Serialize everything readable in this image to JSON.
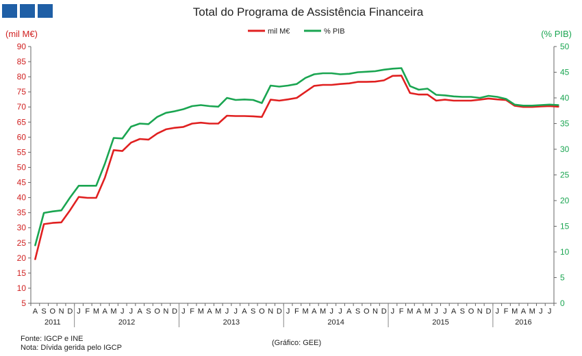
{
  "logo": {
    "squares": [
      "#1f5fa6",
      "#1f5fa6",
      "#1f5fa6"
    ]
  },
  "chart_data": {
    "type": "line",
    "title": "Total do Programa de Assistência Financeira",
    "ylabel_left": "(mil M€)",
    "ylabel_right": "(% PIB)",
    "ylim_left": [
      5,
      90
    ],
    "ylim_right": [
      0,
      50
    ],
    "yticks_left": [
      5,
      10,
      15,
      20,
      25,
      30,
      35,
      40,
      45,
      50,
      55,
      60,
      65,
      70,
      75,
      80,
      85,
      90
    ],
    "yticks_right": [
      0,
      5,
      10,
      15,
      20,
      25,
      30,
      35,
      40,
      45,
      50
    ],
    "month_labels": [
      "A",
      "S",
      "O",
      "N",
      "D",
      "J",
      "F",
      "M",
      "A",
      "M",
      "J",
      "J",
      "A",
      "S",
      "O",
      "N",
      "D",
      "J",
      "F",
      "M",
      "A",
      "M",
      "J",
      "J",
      "A",
      "S",
      "O",
      "N",
      "D",
      "J",
      "F",
      "M",
      "A",
      "M",
      "J",
      "J",
      "A",
      "S",
      "O",
      "N",
      "D",
      "J",
      "F",
      "M",
      "A",
      "M",
      "J",
      "J",
      "A",
      "S",
      "O",
      "N",
      "D",
      "J",
      "F",
      "M",
      "A",
      "M",
      "J",
      "J"
    ],
    "years": [
      {
        "label": "2011",
        "start": 0,
        "end": 5
      },
      {
        "label": "2012",
        "start": 5,
        "end": 17
      },
      {
        "label": "2013",
        "start": 17,
        "end": 29
      },
      {
        "label": "2014",
        "start": 29,
        "end": 41
      },
      {
        "label": "2015",
        "start": 41,
        "end": 53
      },
      {
        "label": "2016",
        "start": 53,
        "end": 60
      }
    ],
    "legend": [
      "mil M€",
      "% PIB"
    ],
    "series": [
      {
        "name": "mil M€",
        "axis": "left",
        "color": "#e02020",
        "values": [
          19.6,
          31.2,
          31.6,
          31.8,
          35.8,
          40.2,
          39.9,
          39.9,
          46.6,
          55.7,
          55.4,
          58.2,
          59.4,
          59.2,
          61.2,
          62.6,
          63.1,
          63.4,
          64.5,
          64.8,
          64.5,
          64.5,
          67.1,
          67.0,
          67.0,
          66.9,
          66.7,
          72.4,
          72.1,
          72.5,
          73.0,
          75.0,
          77.0,
          77.3,
          77.3,
          77.6,
          77.8,
          78.3,
          78.3,
          78.4,
          78.8,
          80.3,
          80.4,
          74.6,
          74.1,
          74.1,
          72.1,
          72.4,
          72.1,
          72.1,
          72.1,
          72.4,
          72.8,
          72.5,
          72.3,
          70.4,
          70.0,
          70.0,
          70.2,
          70.3,
          70.1
        ]
      },
      {
        "name": "% PIB",
        "axis": "right",
        "color": "#1aa551",
        "values": [
          11.3,
          17.6,
          17.9,
          18.1,
          20.6,
          22.9,
          22.9,
          22.9,
          27.2,
          32.2,
          32.1,
          34.4,
          35.0,
          34.9,
          36.3,
          37.1,
          37.4,
          37.8,
          38.4,
          38.6,
          38.4,
          38.3,
          40.0,
          39.6,
          39.7,
          39.6,
          39.0,
          42.4,
          42.2,
          42.4,
          42.7,
          43.9,
          44.6,
          44.8,
          44.8,
          44.6,
          44.7,
          45.0,
          45.1,
          45.2,
          45.5,
          45.7,
          45.8,
          42.3,
          41.6,
          41.8,
          40.6,
          40.5,
          40.3,
          40.2,
          40.2,
          40.0,
          40.4,
          40.2,
          39.8,
          38.7,
          38.5,
          38.5,
          38.6,
          38.7,
          38.6
        ]
      }
    ]
  },
  "footer": {
    "source": "Fonte: IGCP e INE",
    "note": "Nota: Dívida gerida pelo IGCP",
    "credit": "(Gráfico: GEE)"
  }
}
